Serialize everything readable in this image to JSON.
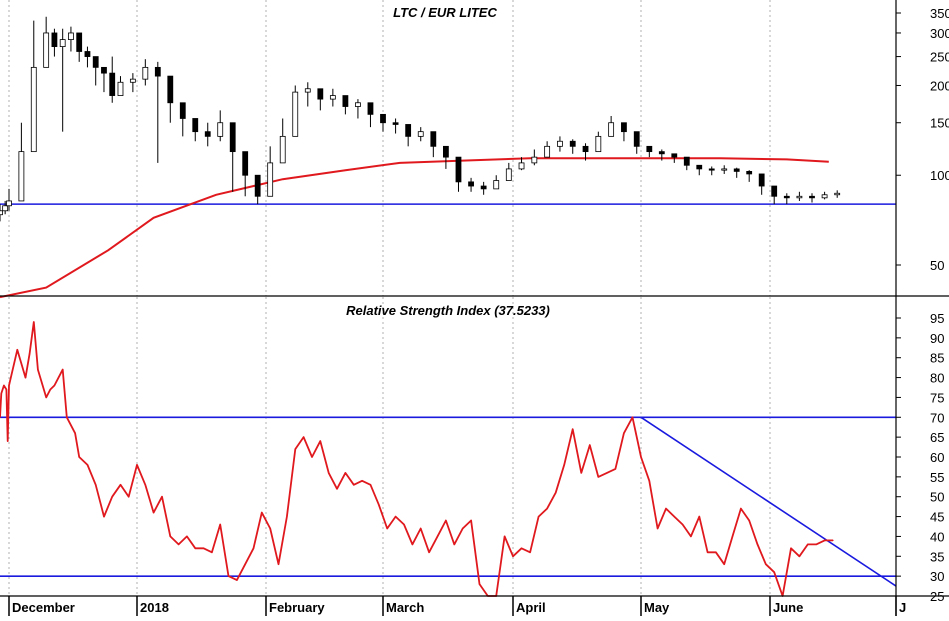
{
  "colors": {
    "background": "#ffffff",
    "price_up": "#ffffff",
    "price_down": "#000000",
    "moving_average": "#e0191e",
    "rsi_line": "#e0191e",
    "support_line": "#1a1adf",
    "grid": "#b0b0b0"
  },
  "chart_data": [
    {
      "type": "candlestick",
      "title": "LTC / EUR LITEC",
      "ylim": [
        10,
        370
      ],
      "yticks": [
        50,
        100,
        150,
        200,
        250,
        300,
        350
      ],
      "y_scale": "log",
      "x_labels": [
        "December",
        "2018",
        "February",
        "March",
        "April",
        "May",
        "June",
        "J"
      ],
      "grid": "vertical dashed at month boundaries",
      "horizontal_line": 80,
      "moving_average": {
        "x": [
          "2017-11-24",
          "2017-12-10",
          "2017-12-25",
          "2018-01-05",
          "2018-01-20",
          "2018-02-05",
          "2018-02-20",
          "2018-03-05",
          "2018-03-20",
          "2018-04-05",
          "2018-04-20",
          "2018-05-05",
          "2018-05-20",
          "2018-06-05",
          "2018-06-15"
        ],
        "values": [
          39,
          42,
          56,
          72,
          86,
          97,
          104,
          110,
          112,
          114,
          114,
          114,
          114,
          113,
          111
        ]
      },
      "price": {
        "x": [
          "2017-11-24",
          "2017-11-28",
          "2017-12-01",
          "2017-12-04",
          "2017-12-07",
          "2017-12-10",
          "2017-12-12",
          "2017-12-14",
          "2017-12-16",
          "2017-12-18",
          "2017-12-20",
          "2017-12-22",
          "2017-12-24",
          "2017-12-26",
          "2017-12-28",
          "2017-12-31",
          "2018-01-03",
          "2018-01-06",
          "2018-01-09",
          "2018-01-12",
          "2018-01-15",
          "2018-01-18",
          "2018-01-21",
          "2018-01-24",
          "2018-01-27",
          "2018-01-30",
          "2018-02-02",
          "2018-02-05",
          "2018-02-08",
          "2018-02-11",
          "2018-02-14",
          "2018-02-17",
          "2018-02-20",
          "2018-02-23",
          "2018-02-26",
          "2018-03-01",
          "2018-03-04",
          "2018-03-07",
          "2018-03-10",
          "2018-03-13",
          "2018-03-16",
          "2018-03-19",
          "2018-03-22",
          "2018-03-25",
          "2018-03-28",
          "2018-03-31",
          "2018-04-03",
          "2018-04-06",
          "2018-04-09",
          "2018-04-12",
          "2018-04-15",
          "2018-04-18",
          "2018-04-21",
          "2018-04-24",
          "2018-04-27",
          "2018-04-30",
          "2018-05-03",
          "2018-05-06",
          "2018-05-09",
          "2018-05-12",
          "2018-05-15",
          "2018-05-18",
          "2018-05-21",
          "2018-05-24",
          "2018-05-27",
          "2018-05-30",
          "2018-06-02",
          "2018-06-05",
          "2018-06-08",
          "2018-06-11",
          "2018-06-14",
          "2018-06-17"
        ],
        "close": [
          76,
          79,
          82,
          120,
          230,
          300,
          270,
          285,
          300,
          260,
          250,
          230,
          220,
          185,
          205,
          210,
          230,
          215,
          175,
          155,
          140,
          135,
          150,
          120,
          100,
          85,
          110,
          135,
          190,
          195,
          180,
          185,
          170,
          175,
          160,
          150,
          148,
          135,
          140,
          125,
          115,
          95,
          92,
          90,
          96,
          105,
          110,
          115,
          125,
          130,
          125,
          120,
          135,
          150,
          140,
          125,
          120,
          118,
          115,
          108,
          105,
          104,
          105,
          103,
          101,
          92,
          85,
          84,
          85,
          84,
          86,
          87
        ],
        "high": [
          80,
          82,
          90,
          150,
          330,
          340,
          310,
          310,
          315,
          300,
          270,
          250,
          230,
          250,
          215,
          220,
          245,
          240,
          200,
          175,
          150,
          150,
          165,
          140,
          115,
          95,
          125,
          155,
          200,
          205,
          195,
          195,
          180,
          180,
          170,
          160,
          155,
          145,
          145,
          135,
          120,
          110,
          98,
          95,
          100,
          110,
          115,
          122,
          130,
          135,
          132,
          128,
          140,
          158,
          150,
          132,
          125,
          122,
          118,
          112,
          108,
          107,
          108,
          106,
          104,
          96,
          88,
          87,
          88,
          87,
          88,
          89
        ],
        "low": [
          70,
          74,
          76,
          110,
          140,
          240,
          250,
          140,
          260,
          240,
          230,
          200,
          190,
          175,
          185,
          190,
          200,
          110,
          150,
          135,
          130,
          125,
          130,
          88,
          85,
          80,
          90,
          110,
          150,
          170,
          165,
          170,
          160,
          155,
          145,
          140,
          138,
          125,
          130,
          115,
          105,
          88,
          88,
          86,
          90,
          98,
          104,
          108,
          118,
          120,
          118,
          112,
          126,
          138,
          130,
          118,
          115,
          112,
          110,
          104,
          100,
          100,
          101,
          98,
          95,
          86,
          80,
          80,
          82,
          81,
          83,
          84
        ]
      }
    },
    {
      "type": "line",
      "title": "Relative Strength Index (37.5233)",
      "ylim": [
        20,
        97
      ],
      "yticks": [
        25,
        30,
        35,
        40,
        45,
        50,
        55,
        60,
        65,
        70,
        75,
        80,
        85,
        90,
        95
      ],
      "x_labels": [
        "December",
        "2018",
        "February",
        "March",
        "April",
        "May",
        "June",
        "J"
      ],
      "horizontal_lines": [
        70,
        30
      ],
      "trendline": [
        {
          "x": "2018-05-01",
          "y": 70
        },
        {
          "x": "2018-07-01",
          "y": 27.5
        }
      ],
      "series": [
        {
          "x": [
            "2017-11-24",
            "2017-11-25",
            "2017-11-27",
            "2017-11-29",
            "2017-11-30",
            "2017-12-01",
            "2017-12-03",
            "2017-12-05",
            "2017-12-06",
            "2017-12-07",
            "2017-12-08",
            "2017-12-10",
            "2017-12-11",
            "2017-12-12",
            "2017-12-14",
            "2017-12-15",
            "2017-12-17",
            "2017-12-18",
            "2017-12-20",
            "2017-12-22",
            "2017-12-24",
            "2017-12-26",
            "2017-12-28",
            "2017-12-30",
            "2018-01-01",
            "2018-01-03",
            "2018-01-05",
            "2018-01-07",
            "2018-01-09",
            "2018-01-11",
            "2018-01-13",
            "2018-01-15",
            "2018-01-17",
            "2018-01-19",
            "2018-01-21",
            "2018-01-23",
            "2018-01-25",
            "2018-01-27",
            "2018-01-29",
            "2018-01-31",
            "2018-02-02",
            "2018-02-04",
            "2018-02-06",
            "2018-02-08",
            "2018-02-10",
            "2018-02-12",
            "2018-02-14",
            "2018-02-16",
            "2018-02-18",
            "2018-02-20",
            "2018-02-22",
            "2018-02-24",
            "2018-02-26",
            "2018-02-28",
            "2018-03-02",
            "2018-03-04",
            "2018-03-06",
            "2018-03-08",
            "2018-03-10",
            "2018-03-12",
            "2018-03-14",
            "2018-03-16",
            "2018-03-18",
            "2018-03-20",
            "2018-03-22",
            "2018-03-24",
            "2018-03-26",
            "2018-03-28",
            "2018-03-30",
            "2018-04-01",
            "2018-04-03",
            "2018-04-05",
            "2018-04-07",
            "2018-04-09",
            "2018-04-11",
            "2018-04-13",
            "2018-04-15",
            "2018-04-17",
            "2018-04-19",
            "2018-04-21",
            "2018-04-23",
            "2018-04-25",
            "2018-04-27",
            "2018-04-29",
            "2018-05-01",
            "2018-05-03",
            "2018-05-05",
            "2018-05-07",
            "2018-05-09",
            "2018-05-11",
            "2018-05-13",
            "2018-05-15",
            "2018-05-17",
            "2018-05-19",
            "2018-05-21",
            "2018-05-23",
            "2018-05-25",
            "2018-05-27",
            "2018-05-29",
            "2018-05-31",
            "2018-06-02",
            "2018-06-04",
            "2018-06-06",
            "2018-06-08",
            "2018-06-10",
            "2018-06-12",
            "2018-06-14",
            "2018-06-16"
          ],
          "values": [
            70,
            76,
            78,
            77,
            64,
            78,
            87,
            80,
            86,
            94,
            82,
            75,
            77,
            78,
            82,
            70,
            66,
            60,
            58,
            53,
            45,
            50,
            53,
            50,
            58,
            53,
            46,
            50,
            40,
            38,
            40,
            37,
            37,
            36,
            43,
            30,
            29,
            33,
            37,
            46,
            42,
            33,
            45,
            62,
            65,
            60,
            64,
            56,
            52,
            56,
            53,
            54,
            53,
            48,
            42,
            45,
            43,
            38,
            42,
            36,
            40,
            44,
            38,
            42,
            44,
            28,
            25,
            25,
            40,
            35,
            37,
            36,
            45,
            47,
            51,
            58,
            67,
            56,
            63,
            55,
            56,
            57,
            66,
            70,
            60,
            54,
            42,
            47,
            45,
            43,
            40,
            45,
            36,
            36,
            33,
            40,
            47,
            44,
            38,
            33,
            31,
            25,
            37,
            35,
            38,
            38,
            39,
            39
          ]
        }
      ]
    }
  ]
}
